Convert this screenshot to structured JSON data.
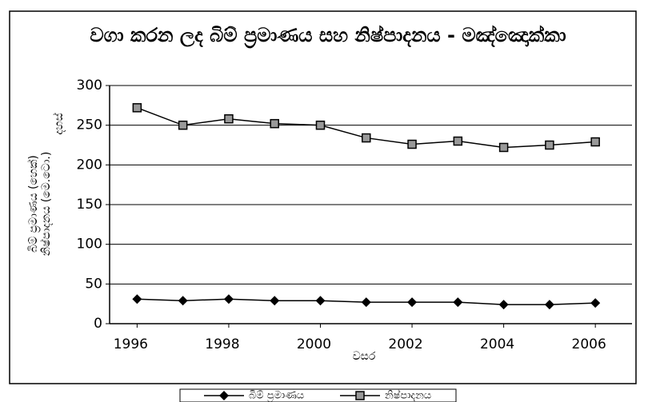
{
  "chart_data": {
    "type": "line",
    "title": "වගා කරන ලද බිම් ප්‍රමාණය සහ  නිෂ්පාදනය - මඤ්ඤොක්කා",
    "ylabel": [
      "බිම් ප්‍රමාණය (හෙක්)",
      "නිෂ්පාදනය (මෙ.ටො.)",
      "දහස්"
    ],
    "xlabel": "වසර",
    "x": [
      1996,
      1997,
      1998,
      1999,
      2000,
      2001,
      2002,
      2003,
      2004,
      2005,
      2006
    ],
    "series": [
      {
        "name": "බිම් ප්‍රමාණය",
        "color": "#000000",
        "marker": "diamond",
        "values": [
          31,
          29,
          31,
          29,
          29,
          27,
          27,
          27,
          24,
          24,
          26
        ]
      },
      {
        "name": "නිෂ්පාදනය",
        "color": "#000000",
        "marker": "square",
        "values": [
          272,
          250,
          258,
          252,
          250,
          234,
          226,
          230,
          222,
          225,
          229
        ]
      }
    ],
    "xlim": [
      1995.4,
      2006.8
    ],
    "xticks": [
      1996,
      1998,
      2000,
      2002,
      2004,
      2006
    ],
    "ylim": [
      0,
      300
    ],
    "yticks": [
      0,
      50,
      100,
      150,
      200,
      250,
      300
    ],
    "grid": true,
    "legend": "bottom"
  }
}
